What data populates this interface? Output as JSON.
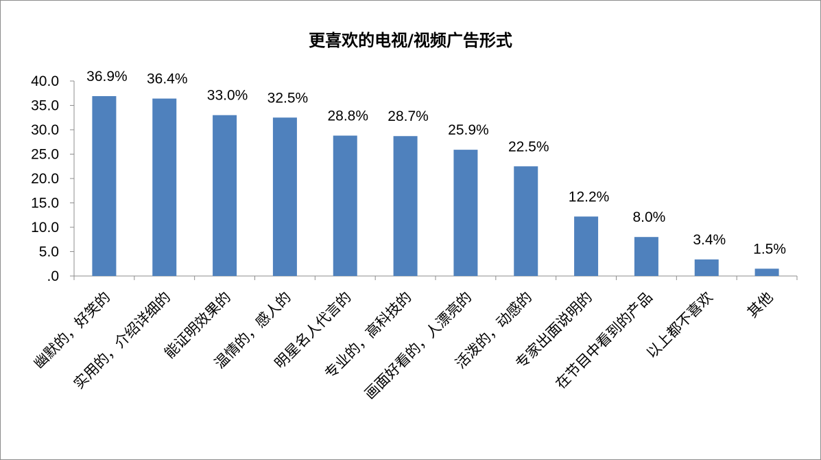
{
  "chart_data": {
    "type": "bar",
    "title": "更喜欢的电视/视频广告形式",
    "categories": [
      "幽默的，好笑的",
      "实用的，介绍详细的",
      "能证明效果的",
      "温情的，感人的",
      "明星名人代言的",
      "专业的，高科技的",
      "画面好看的，人漂亮的",
      "活泼的，动感的",
      "专家出面说明的",
      "在节目中看到的产品",
      "以上都不喜欢",
      "其他"
    ],
    "values": [
      36.9,
      36.4,
      33.0,
      32.5,
      28.8,
      28.7,
      25.9,
      22.5,
      12.2,
      8.0,
      3.4,
      1.5
    ],
    "data_labels": [
      "36.9%",
      "36.4%",
      "33.0%",
      "32.5%",
      "28.8%",
      "28.7%",
      "25.9%",
      "22.5%",
      "12.2%",
      "8.0%",
      "3.4%",
      "1.5%"
    ],
    "y_ticks": [
      ".0",
      "5.0",
      "10.0",
      "15.0",
      "20.0",
      "25.0",
      "30.0",
      "35.0",
      "40.0"
    ],
    "ylim": [
      0,
      40
    ],
    "xlabel": "",
    "ylabel": "",
    "grid": false,
    "legend": "none",
    "bar_color": "#4f81bd"
  }
}
